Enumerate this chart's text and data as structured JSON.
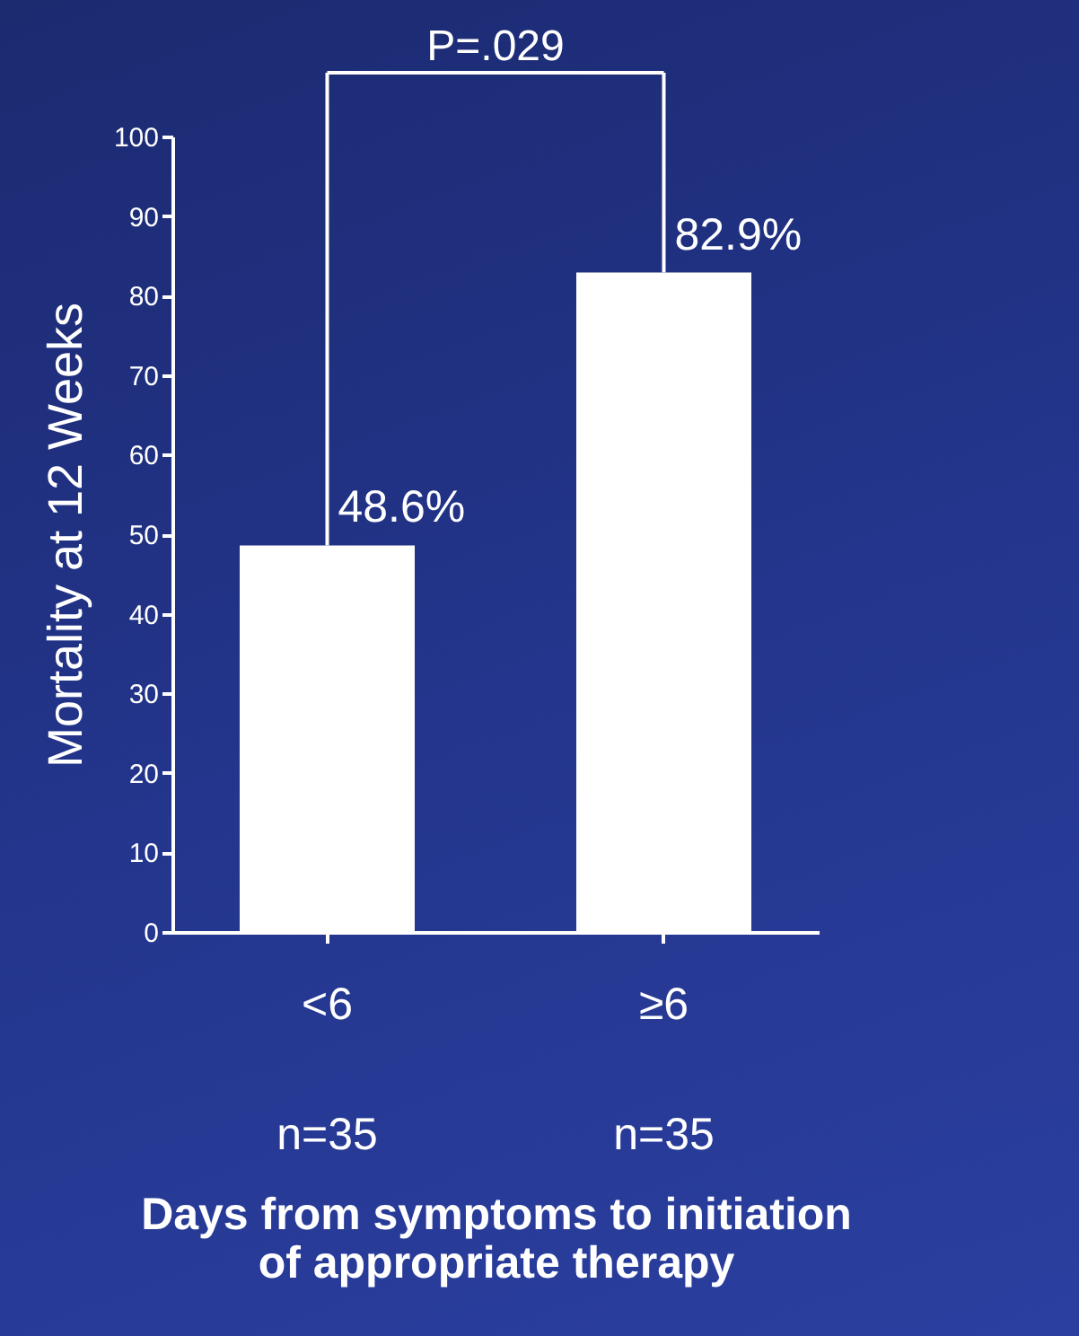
{
  "chart_data": {
    "type": "bar",
    "categories": [
      "<6",
      "≥6"
    ],
    "values": [
      48.6,
      82.9
    ],
    "color": "#ffffff",
    "value_labels": [
      "48.6%",
      "82.9%"
    ],
    "ylabel": "Mortality at 12 Weeks",
    "xlabel": "Days from symptoms to initiation of appropriate therapy",
    "ylim": [
      0,
      100
    ],
    "yticks": [
      0,
      10,
      20,
      30,
      40,
      50,
      60,
      70,
      80,
      90,
      100
    ],
    "grid": false,
    "annotations": [
      "P=.029",
      "n=35",
      "n=35"
    ]
  }
}
